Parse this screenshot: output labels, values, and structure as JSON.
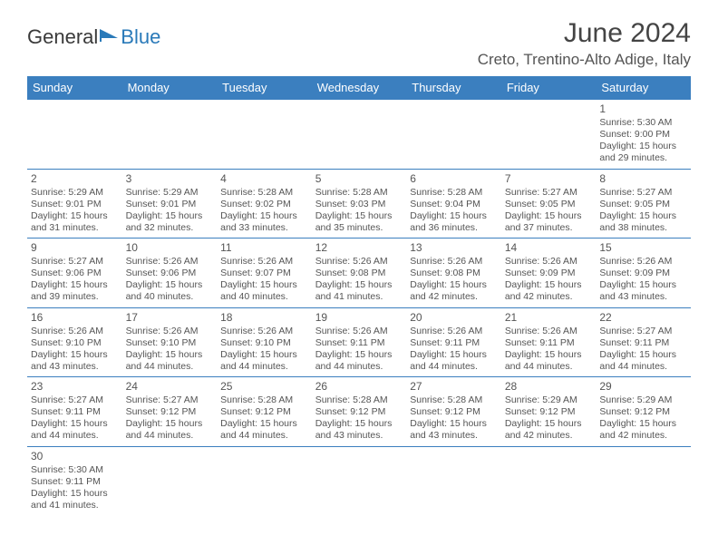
{
  "logo": {
    "text1": "General",
    "text2": "Blue"
  },
  "title": "June 2024",
  "location": "Creto, Trentino-Alto Adige, Italy",
  "columns": [
    "Sunday",
    "Monday",
    "Tuesday",
    "Wednesday",
    "Thursday",
    "Friday",
    "Saturday"
  ],
  "header_bg": "#3b7fbf",
  "header_fg": "#ffffff",
  "cell_border": "#3b7fbf",
  "weeks": [
    [
      null,
      null,
      null,
      null,
      null,
      null,
      {
        "n": "1",
        "sr": "Sunrise: 5:30 AM",
        "ss": "Sunset: 9:00 PM",
        "d1": "Daylight: 15 hours",
        "d2": "and 29 minutes."
      }
    ],
    [
      {
        "n": "2",
        "sr": "Sunrise: 5:29 AM",
        "ss": "Sunset: 9:01 PM",
        "d1": "Daylight: 15 hours",
        "d2": "and 31 minutes."
      },
      {
        "n": "3",
        "sr": "Sunrise: 5:29 AM",
        "ss": "Sunset: 9:01 PM",
        "d1": "Daylight: 15 hours",
        "d2": "and 32 minutes."
      },
      {
        "n": "4",
        "sr": "Sunrise: 5:28 AM",
        "ss": "Sunset: 9:02 PM",
        "d1": "Daylight: 15 hours",
        "d2": "and 33 minutes."
      },
      {
        "n": "5",
        "sr": "Sunrise: 5:28 AM",
        "ss": "Sunset: 9:03 PM",
        "d1": "Daylight: 15 hours",
        "d2": "and 35 minutes."
      },
      {
        "n": "6",
        "sr": "Sunrise: 5:28 AM",
        "ss": "Sunset: 9:04 PM",
        "d1": "Daylight: 15 hours",
        "d2": "and 36 minutes."
      },
      {
        "n": "7",
        "sr": "Sunrise: 5:27 AM",
        "ss": "Sunset: 9:05 PM",
        "d1": "Daylight: 15 hours",
        "d2": "and 37 minutes."
      },
      {
        "n": "8",
        "sr": "Sunrise: 5:27 AM",
        "ss": "Sunset: 9:05 PM",
        "d1": "Daylight: 15 hours",
        "d2": "and 38 minutes."
      }
    ],
    [
      {
        "n": "9",
        "sr": "Sunrise: 5:27 AM",
        "ss": "Sunset: 9:06 PM",
        "d1": "Daylight: 15 hours",
        "d2": "and 39 minutes."
      },
      {
        "n": "10",
        "sr": "Sunrise: 5:26 AM",
        "ss": "Sunset: 9:06 PM",
        "d1": "Daylight: 15 hours",
        "d2": "and 40 minutes."
      },
      {
        "n": "11",
        "sr": "Sunrise: 5:26 AM",
        "ss": "Sunset: 9:07 PM",
        "d1": "Daylight: 15 hours",
        "d2": "and 40 minutes."
      },
      {
        "n": "12",
        "sr": "Sunrise: 5:26 AM",
        "ss": "Sunset: 9:08 PM",
        "d1": "Daylight: 15 hours",
        "d2": "and 41 minutes."
      },
      {
        "n": "13",
        "sr": "Sunrise: 5:26 AM",
        "ss": "Sunset: 9:08 PM",
        "d1": "Daylight: 15 hours",
        "d2": "and 42 minutes."
      },
      {
        "n": "14",
        "sr": "Sunrise: 5:26 AM",
        "ss": "Sunset: 9:09 PM",
        "d1": "Daylight: 15 hours",
        "d2": "and 42 minutes."
      },
      {
        "n": "15",
        "sr": "Sunrise: 5:26 AM",
        "ss": "Sunset: 9:09 PM",
        "d1": "Daylight: 15 hours",
        "d2": "and 43 minutes."
      }
    ],
    [
      {
        "n": "16",
        "sr": "Sunrise: 5:26 AM",
        "ss": "Sunset: 9:10 PM",
        "d1": "Daylight: 15 hours",
        "d2": "and 43 minutes."
      },
      {
        "n": "17",
        "sr": "Sunrise: 5:26 AM",
        "ss": "Sunset: 9:10 PM",
        "d1": "Daylight: 15 hours",
        "d2": "and 44 minutes."
      },
      {
        "n": "18",
        "sr": "Sunrise: 5:26 AM",
        "ss": "Sunset: 9:10 PM",
        "d1": "Daylight: 15 hours",
        "d2": "and 44 minutes."
      },
      {
        "n": "19",
        "sr": "Sunrise: 5:26 AM",
        "ss": "Sunset: 9:11 PM",
        "d1": "Daylight: 15 hours",
        "d2": "and 44 minutes."
      },
      {
        "n": "20",
        "sr": "Sunrise: 5:26 AM",
        "ss": "Sunset: 9:11 PM",
        "d1": "Daylight: 15 hours",
        "d2": "and 44 minutes."
      },
      {
        "n": "21",
        "sr": "Sunrise: 5:26 AM",
        "ss": "Sunset: 9:11 PM",
        "d1": "Daylight: 15 hours",
        "d2": "and 44 minutes."
      },
      {
        "n": "22",
        "sr": "Sunrise: 5:27 AM",
        "ss": "Sunset: 9:11 PM",
        "d1": "Daylight: 15 hours",
        "d2": "and 44 minutes."
      }
    ],
    [
      {
        "n": "23",
        "sr": "Sunrise: 5:27 AM",
        "ss": "Sunset: 9:11 PM",
        "d1": "Daylight: 15 hours",
        "d2": "and 44 minutes."
      },
      {
        "n": "24",
        "sr": "Sunrise: 5:27 AM",
        "ss": "Sunset: 9:12 PM",
        "d1": "Daylight: 15 hours",
        "d2": "and 44 minutes."
      },
      {
        "n": "25",
        "sr": "Sunrise: 5:28 AM",
        "ss": "Sunset: 9:12 PM",
        "d1": "Daylight: 15 hours",
        "d2": "and 44 minutes."
      },
      {
        "n": "26",
        "sr": "Sunrise: 5:28 AM",
        "ss": "Sunset: 9:12 PM",
        "d1": "Daylight: 15 hours",
        "d2": "and 43 minutes."
      },
      {
        "n": "27",
        "sr": "Sunrise: 5:28 AM",
        "ss": "Sunset: 9:12 PM",
        "d1": "Daylight: 15 hours",
        "d2": "and 43 minutes."
      },
      {
        "n": "28",
        "sr": "Sunrise: 5:29 AM",
        "ss": "Sunset: 9:12 PM",
        "d1": "Daylight: 15 hours",
        "d2": "and 42 minutes."
      },
      {
        "n": "29",
        "sr": "Sunrise: 5:29 AM",
        "ss": "Sunset: 9:12 PM",
        "d1": "Daylight: 15 hours",
        "d2": "and 42 minutes."
      }
    ],
    [
      {
        "n": "30",
        "sr": "Sunrise: 5:30 AM",
        "ss": "Sunset: 9:11 PM",
        "d1": "Daylight: 15 hours",
        "d2": "and 41 minutes."
      },
      null,
      null,
      null,
      null,
      null,
      null
    ]
  ]
}
